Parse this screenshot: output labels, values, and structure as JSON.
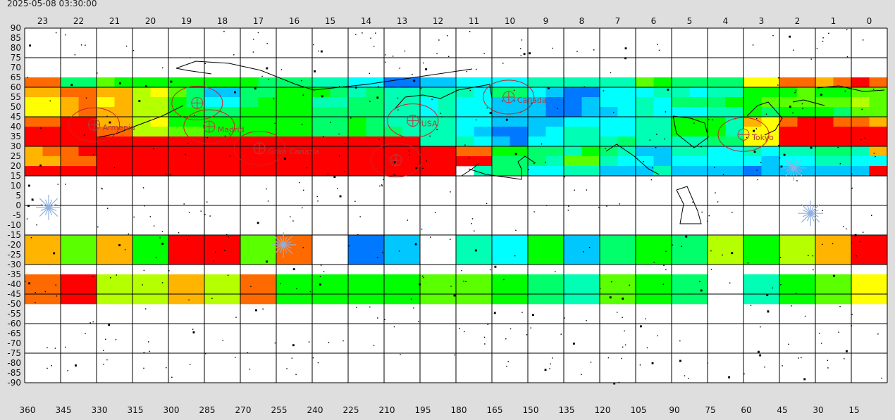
{
  "timestamp": "2025-05-08 03:30:00",
  "chart_data": {
    "type": "heatmap",
    "title": "",
    "xlabel": "",
    "ylabel": "",
    "hour_ticks": [
      "23",
      "22",
      "21",
      "20",
      "19",
      "18",
      "17",
      "16",
      "15",
      "14",
      "13",
      "12",
      "11",
      "10",
      "9",
      "8",
      "7",
      "6",
      "5",
      "4",
      "3",
      "2",
      "1",
      "0"
    ],
    "ra_ticks": [
      "360",
      "345",
      "330",
      "315",
      "300",
      "285",
      "270",
      "255",
      "240",
      "225",
      "210",
      "195",
      "180",
      "165",
      "150",
      "135",
      "120",
      "105",
      "90",
      "75",
      "60",
      "45",
      "30",
      "15"
    ],
    "dec_ticks": [
      "90",
      "85",
      "80",
      "75",
      "70",
      "65",
      "60",
      "55",
      "50",
      "45",
      "40",
      "35",
      "30",
      "25",
      "20",
      "15",
      "10",
      "5",
      "0",
      "-5",
      "-10",
      "-15",
      "-20",
      "-25",
      "-30",
      "-35",
      "-40",
      "-45",
      "-50",
      "-55",
      "-60",
      "-65",
      "-70",
      "-75",
      "-80",
      "-85",
      "-90"
    ],
    "ylim": [
      -90,
      90
    ],
    "xlim": [
      360,
      0
    ],
    "colormap": [
      "#ff0000",
      "#ff6a00",
      "#ffb400",
      "#ffff00",
      "#b4ff00",
      "#5aff00",
      "#00ff00",
      "#00ff6a",
      "#00ffb4",
      "#00ffff",
      "#00c8ff",
      "#0078ff"
    ],
    "bands": [
      {
        "dec": [
          60,
          65
        ],
        "cols": 48,
        "values": [
          1,
          1,
          7,
          7,
          5,
          6,
          6,
          6,
          6,
          6,
          6,
          6,
          6,
          7,
          7,
          7,
          8,
          8,
          9,
          9,
          11,
          11,
          10,
          10,
          9,
          9,
          9,
          9,
          8,
          8,
          8,
          8,
          8,
          8,
          5,
          6,
          7,
          7,
          7,
          7,
          3,
          3,
          1,
          1,
          2,
          1,
          0,
          1
        ]
      },
      {
        "dec": [
          55,
          60
        ],
        "cols": 48,
        "values": [
          2,
          2,
          1,
          1,
          2,
          2,
          4,
          3,
          5,
          7,
          10,
          10,
          7,
          7,
          6,
          6,
          6,
          7,
          8,
          7,
          8,
          8,
          8,
          8,
          8,
          9,
          7,
          7,
          9,
          10,
          11,
          11,
          9,
          9,
          9,
          8,
          8,
          9,
          8,
          8,
          6,
          6,
          6,
          5,
          6,
          6,
          5,
          5
        ]
      },
      {
        "dec": [
          50,
          55
        ],
        "cols": 48,
        "values": [
          3,
          3,
          2,
          1,
          3,
          2,
          4,
          4,
          6,
          7,
          9,
          9,
          7,
          6,
          6,
          6,
          8,
          8,
          7,
          7,
          8,
          8,
          9,
          8,
          9,
          9,
          10,
          10,
          10,
          11,
          11,
          10,
          9,
          9,
          8,
          9,
          7,
          7,
          7,
          6,
          6,
          5,
          5,
          5,
          5,
          5,
          4,
          5
        ]
      },
      {
        "dec": [
          45,
          50
        ],
        "cols": 48,
        "values": [
          3,
          3,
          2,
          1,
          2,
          2,
          4,
          4,
          6,
          6,
          7,
          7,
          6,
          6,
          6,
          6,
          7,
          7,
          7,
          7,
          8,
          8,
          9,
          8,
          9,
          9,
          10,
          10,
          10,
          11,
          11,
          10,
          10,
          9,
          8,
          9,
          9,
          9,
          8,
          8,
          6,
          7,
          6,
          6,
          6,
          7,
          5,
          5
        ]
      },
      {
        "dec": [
          40,
          45
        ],
        "cols": 48,
        "values": [
          1,
          1,
          0,
          0,
          2,
          2,
          4,
          3,
          6,
          6,
          6,
          6,
          6,
          6,
          6,
          6,
          7,
          7,
          6,
          7,
          8,
          8,
          8,
          8,
          9,
          9,
          10,
          10,
          10,
          10,
          9,
          9,
          9,
          9,
          8,
          8,
          6,
          6,
          6,
          8,
          2,
          3,
          1,
          0,
          0,
          1,
          1,
          2
        ]
      },
      {
        "dec": [
          35,
          40
        ],
        "cols": 48,
        "values": [
          0,
          0,
          0,
          0,
          1,
          1,
          4,
          4,
          5,
          5,
          6,
          6,
          6,
          6,
          6,
          6,
          7,
          7,
          6,
          7,
          7,
          8,
          8,
          8,
          9,
          10,
          11,
          11,
          10,
          9,
          8,
          8,
          9,
          9,
          8,
          8,
          6,
          6,
          6,
          8,
          3,
          3,
          0,
          0,
          0,
          0,
          0,
          0
        ]
      },
      {
        "dec": [
          30,
          35
        ],
        "cols": 48,
        "values": [
          0,
          0,
          0,
          0,
          0,
          0,
          0,
          0,
          0,
          0,
          0,
          0,
          0,
          0,
          0,
          0,
          0,
          0,
          0,
          0,
          0,
          0,
          8,
          8,
          8,
          9,
          10,
          11,
          9,
          9,
          8,
          8,
          8,
          7,
          8,
          8,
          8,
          8,
          7,
          7,
          3,
          3,
          0,
          0,
          0,
          0,
          0,
          0
        ]
      },
      {
        "dec": [
          25,
          30
        ],
        "cols": 48,
        "values": [
          2,
          1,
          1,
          0,
          0,
          0,
          0,
          0,
          0,
          0,
          0,
          0,
          0,
          0,
          0,
          0,
          0,
          0,
          0,
          0,
          0,
          0,
          0,
          0,
          1,
          1,
          6,
          6,
          7,
          7,
          8,
          6,
          7,
          8,
          10,
          10,
          8,
          8,
          9,
          9,
          8,
          9,
          8,
          8,
          7,
          7,
          8,
          2
        ]
      },
      {
        "dec": [
          20,
          25
        ],
        "cols": 48,
        "values": [
          2,
          2,
          1,
          1,
          0,
          0,
          0,
          0,
          0,
          0,
          0,
          0,
          0,
          0,
          0,
          0,
          0,
          0,
          0,
          0,
          0,
          0,
          0,
          0,
          0,
          0,
          7,
          7,
          7,
          8,
          5,
          5,
          8,
          9,
          9,
          10,
          9,
          9,
          9,
          9,
          9,
          10,
          9,
          9,
          8,
          8,
          9,
          9
        ]
      },
      {
        "dec": [
          15,
          20
        ],
        "cols": 48,
        "values": [
          0,
          0,
          0,
          0,
          0,
          0,
          0,
          0,
          0,
          0,
          0,
          0,
          0,
          0,
          0,
          0,
          0,
          0,
          0,
          0,
          0,
          0,
          0,
          0,
          -1,
          8,
          7,
          7,
          9,
          9,
          8,
          8,
          10,
          10,
          10,
          8,
          10,
          10,
          10,
          10,
          11,
          10,
          10,
          10,
          10,
          10,
          10,
          0
        ]
      },
      {
        "dec": [
          -25,
          -15
        ],
        "cols": 24,
        "values": [
          2,
          5,
          2,
          6,
          0,
          0,
          5,
          1,
          -1,
          11,
          10,
          -1,
          8,
          9,
          6,
          10,
          7,
          6,
          7,
          4,
          6,
          4,
          2,
          0
        ]
      },
      {
        "dec": [
          -30,
          -25
        ],
        "cols": 24,
        "values": [
          2,
          5,
          2,
          6,
          0,
          0,
          5,
          1,
          -1,
          11,
          10,
          -1,
          8,
          9,
          6,
          10,
          7,
          6,
          7,
          4,
          6,
          4,
          2,
          0
        ]
      },
      {
        "dec": [
          -45,
          -35
        ],
        "cols": 24,
        "values": [
          1,
          0,
          4,
          4,
          2,
          4,
          1,
          6,
          6,
          6,
          6,
          5,
          5,
          6,
          7,
          8,
          5,
          6,
          7,
          -1,
          8,
          6,
          5,
          3
        ]
      },
      {
        "dec": [
          -50,
          -45
        ],
        "cols": 24,
        "values": [
          1,
          0,
          4,
          4,
          2,
          4,
          1,
          6,
          6,
          6,
          6,
          5,
          5,
          6,
          7,
          8,
          5,
          6,
          7,
          -1,
          8,
          6,
          5,
          3
        ]
      }
    ],
    "cities": [
      {
        "name": "Armenia",
        "ra": 331,
        "dec": 41
      },
      {
        "name": "",
        "ra": 288,
        "dec": 52
      },
      {
        "name": "Madrid",
        "ra": 283,
        "dec": 40
      },
      {
        "name": "Gran Canaria",
        "ra": 262,
        "dec": 29
      },
      {
        "name": "USA",
        "ra": 198,
        "dec": 43
      },
      {
        "name": "Canada",
        "ra": 158,
        "dec": 55
      },
      {
        "name": "",
        "ra": 205,
        "dec": 23
      },
      {
        "name": "Tokyo",
        "ra": 60,
        "dec": 36
      }
    ],
    "bright_stars": [
      {
        "ra": 350,
        "dec": -1
      },
      {
        "ra": 252,
        "dec": -20
      },
      {
        "ra": 39,
        "dec": 19
      },
      {
        "ra": 32,
        "dec": -4
      }
    ]
  }
}
